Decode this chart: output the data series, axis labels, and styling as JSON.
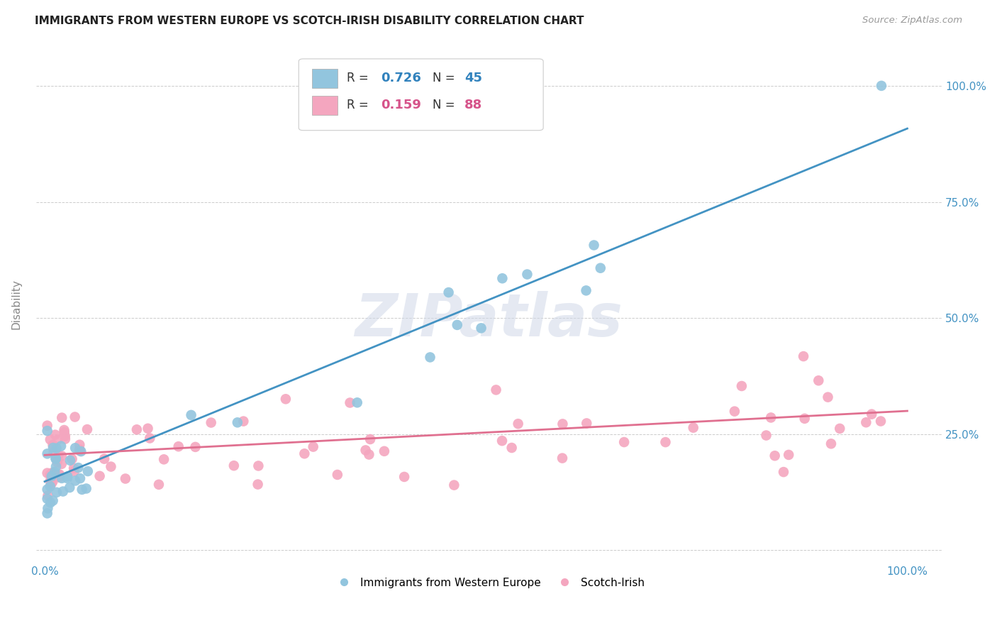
{
  "title": "IMMIGRANTS FROM WESTERN EUROPE VS SCOTCH-IRISH DISABILITY CORRELATION CHART",
  "source": "Source: ZipAtlas.com",
  "ylabel": "Disability",
  "blue_R": 0.726,
  "blue_N": 45,
  "pink_R": 0.159,
  "pink_N": 88,
  "blue_color": "#92c5de",
  "pink_color": "#f4a6bf",
  "blue_line_color": "#4393c3",
  "pink_line_color": "#e07090",
  "blue_label_color": "#3182bd",
  "pink_label_color": "#d6538a",
  "background_color": "#ffffff",
  "watermark": "ZIPatlas",
  "grid_color": "#cccccc",
  "tick_label_color": "#4393c3",
  "blue_line_intercept": 0.148,
  "blue_line_slope": 0.76,
  "pink_line_intercept": 0.205,
  "pink_line_slope": 0.095
}
